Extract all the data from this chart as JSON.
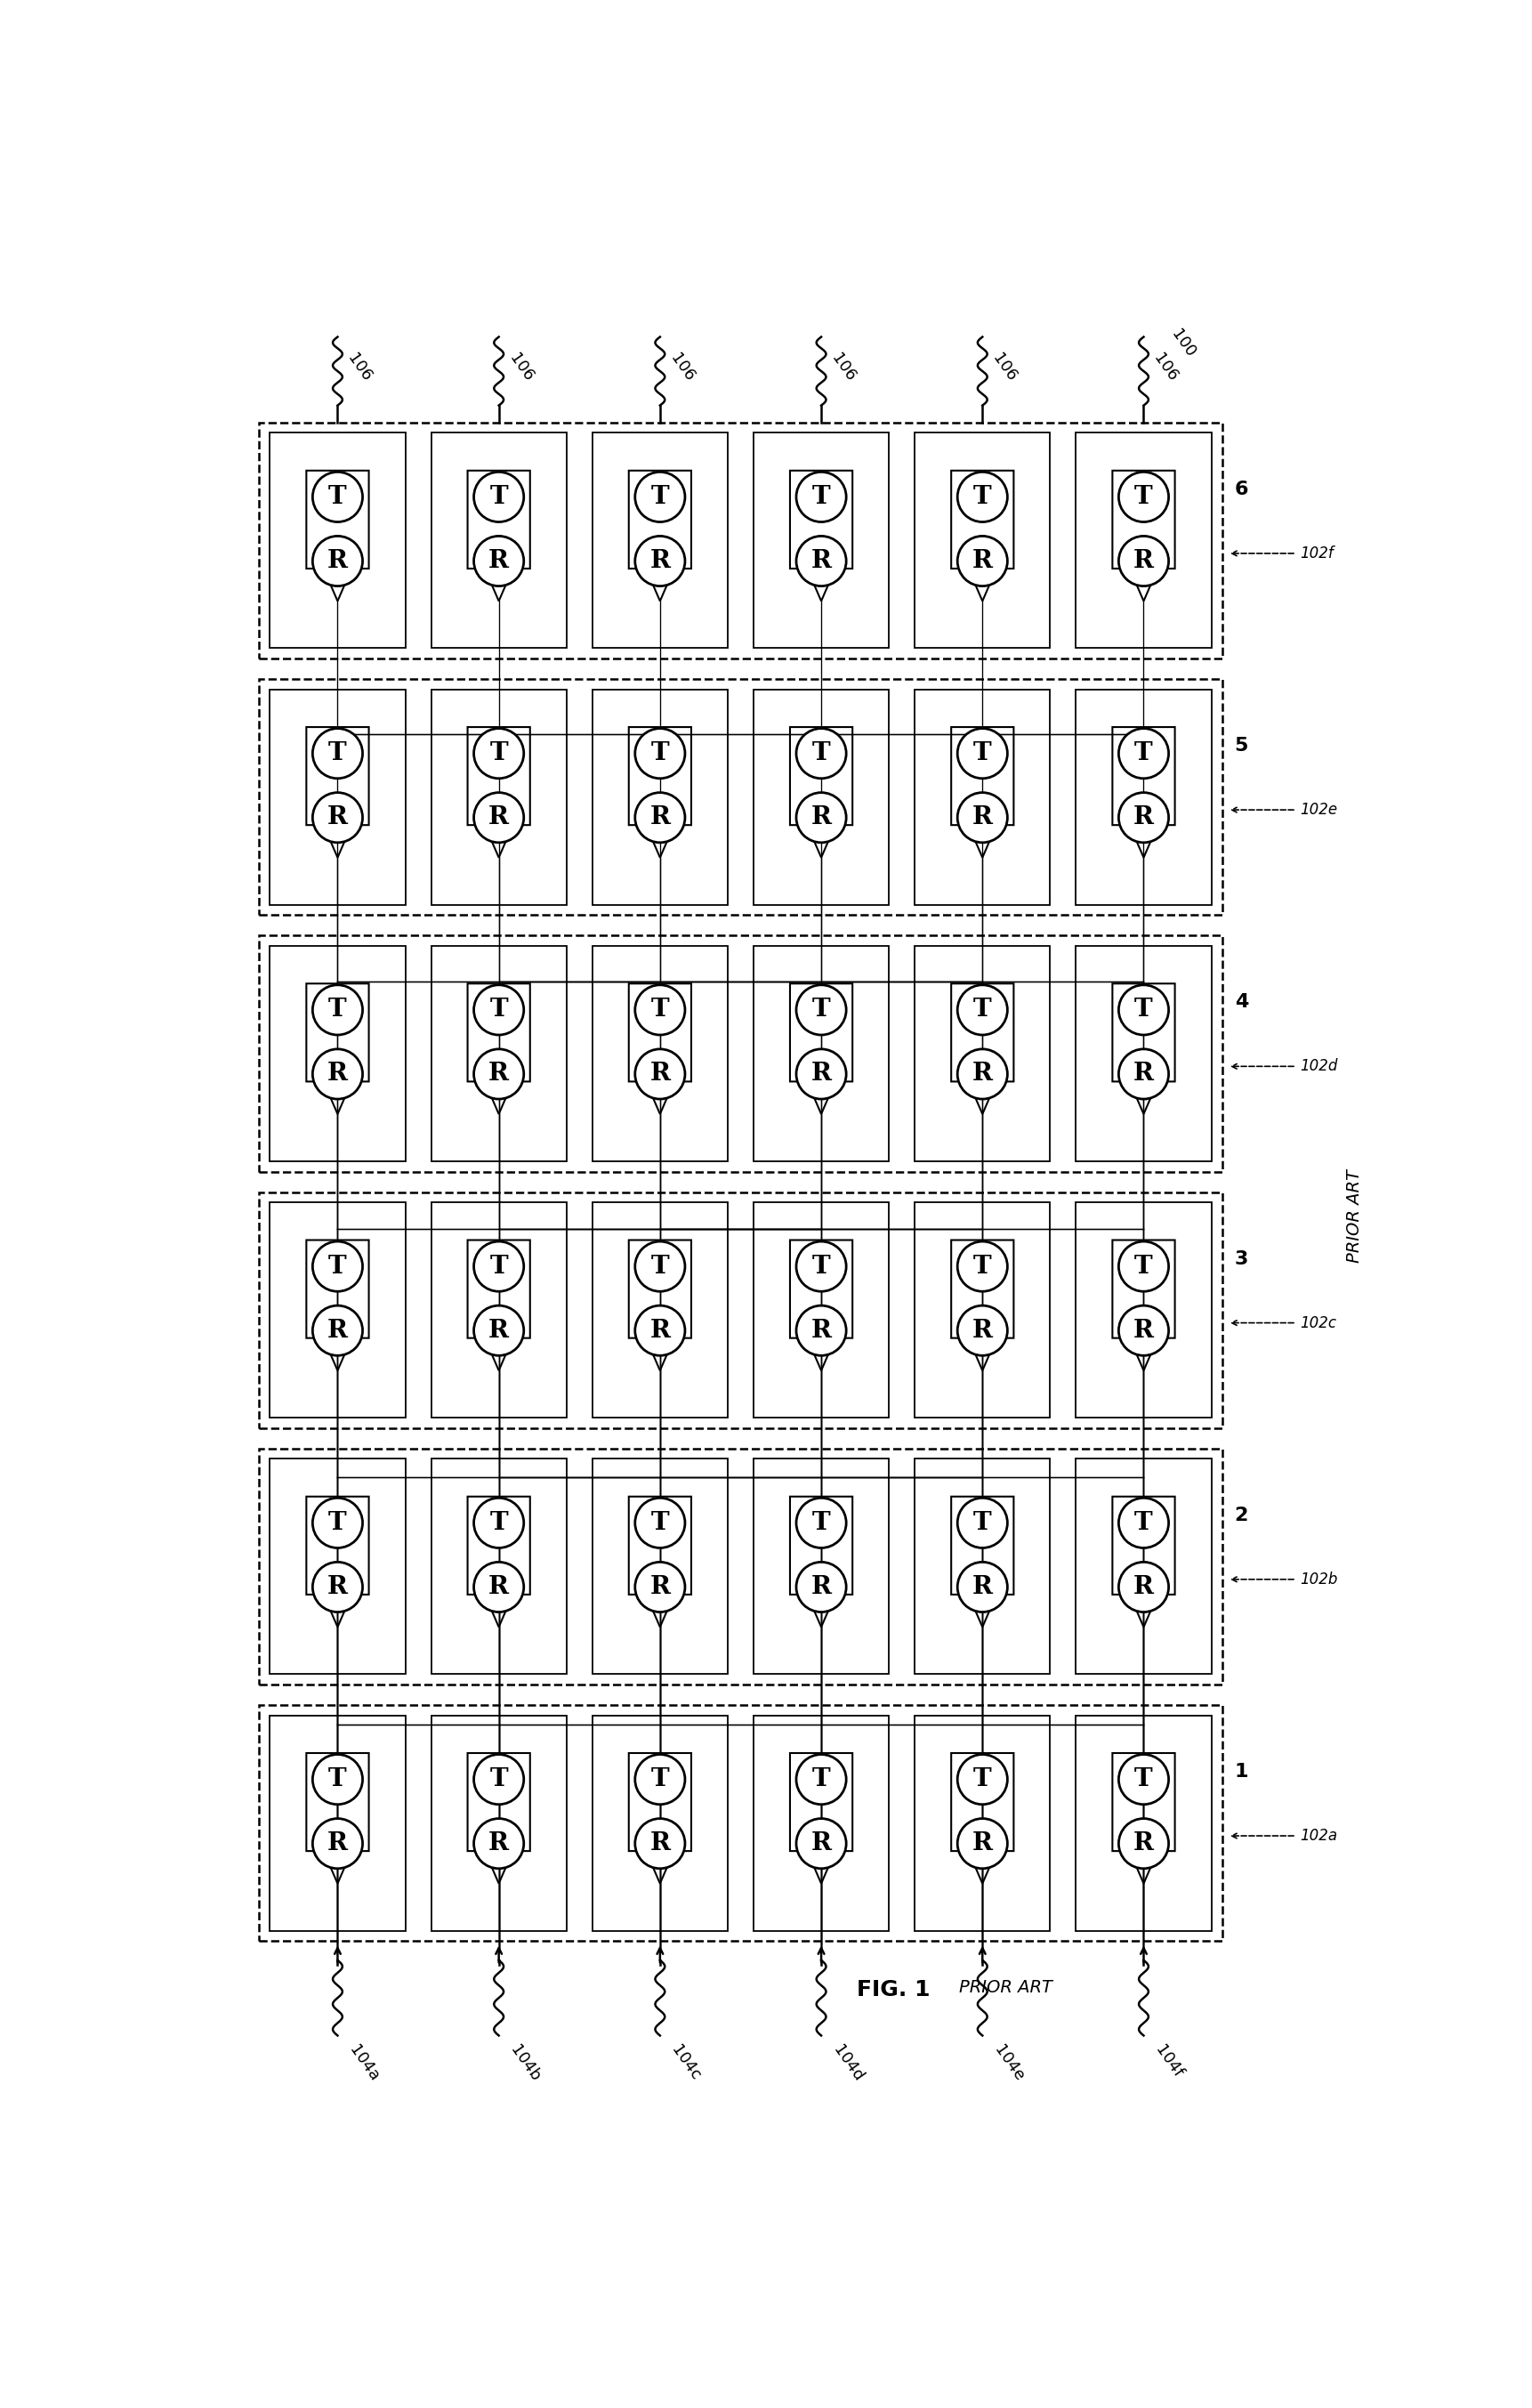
{
  "title": "FIG. 1",
  "subtitle": "PRIOR ART",
  "num_rows": 6,
  "num_cols": 6,
  "row_labels": [
    "1",
    "2",
    "3",
    "4",
    "5",
    "6"
  ],
  "row_ref": [
    "102a",
    "102b",
    "102c",
    "102d",
    "102e",
    "102f"
  ],
  "col_labels": [
    "104a",
    "104b",
    "104c",
    "104d",
    "104e",
    "104f"
  ],
  "top_label": "100",
  "connector_label": "106",
  "background": "#ffffff",
  "line_color": "#000000",
  "fig_width": 17.22,
  "fig_height": 27.06
}
